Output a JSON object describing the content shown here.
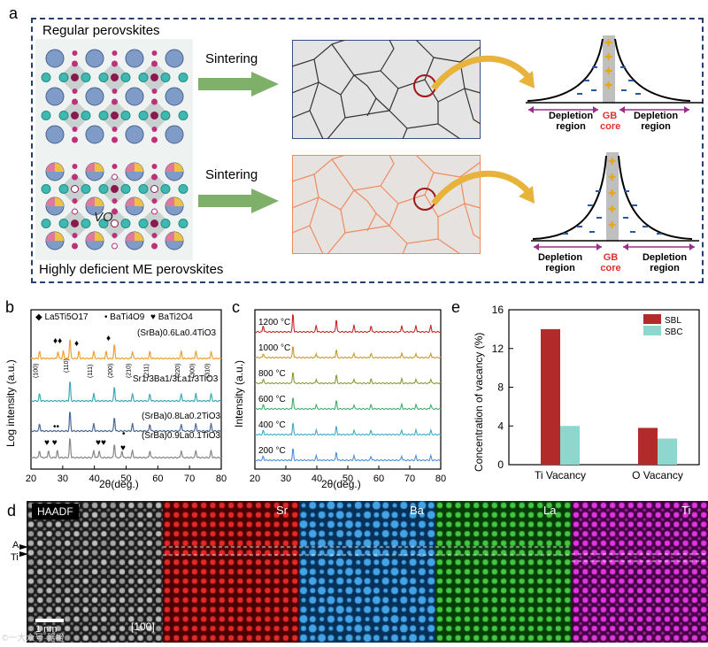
{
  "panel_a": {
    "label": "a",
    "regular_title": "Regular perovskites",
    "deficient_title": "Highly deficient ME perovskites",
    "vacancy_symbol": "VO",
    "sintering_top": "Sintering",
    "sintering_bottom": "Sintering",
    "depletion_left": "Depletion region",
    "gb_core": "GB core",
    "depletion_right": "Depletion region",
    "colors": {
      "regular_grain": "#333333",
      "deficient_grain": "#f08a5d",
      "arrow": "#7fb069",
      "highlight": "#e8b33a",
      "gb_text": "#e0322a",
      "depletion_arrow": "#9a2d8c"
    }
  },
  "panel_b": {
    "label": "b",
    "legend": [
      "◆ La5Ti5O17",
      "• BaTi4O9",
      "♥ BaTi2O4"
    ],
    "traces": [
      {
        "name": "(SrBa)0.6La0.4TiO3",
        "color": "#f0a030"
      },
      {
        "name": "Sr1/3Ba1/3La1/3TiO3",
        "color": "#3fa9b9"
      },
      {
        "name": "(SrBa)0.8La0.2TiO3",
        "color": "#4a6a9a"
      },
      {
        "name": "(SrBa)0.9La0.1TiO3",
        "color": "#888888"
      }
    ],
    "hkl": [
      "(100)",
      "(110)",
      "(111)",
      "(200)",
      "(210)",
      "(211)",
      "(220)",
      "(300)",
      "(310)"
    ],
    "xlabel": "2θ(deg.)",
    "ylabel": "Log intensity (a.u.)",
    "xticks": [
      "20",
      "30",
      "40",
      "50",
      "60",
      "70",
      "80"
    ]
  },
  "panel_c": {
    "label": "c",
    "temps": [
      "1200 °C",
      "1000 °C",
      "800 °C",
      "600 °C",
      "400 °C",
      "200 °C"
    ],
    "colors": [
      "#c62828",
      "#c79a2a",
      "#8a9a3a",
      "#3fae6a",
      "#3fa9c9",
      "#4a90d9"
    ],
    "xlabel": "2θ(deg.)",
    "ylabel": "Intensity (a.u.)",
    "xticks": [
      "20",
      "30",
      "40",
      "50",
      "60",
      "70",
      "80"
    ]
  },
  "panel_d": {
    "label": "d",
    "tiles": [
      {
        "name": "HAADF",
        "color": "#d0d0d0",
        "bg": "#1a1a1a"
      },
      {
        "name": "Sr",
        "color": "#ff3030",
        "bg": "#4a0000"
      },
      {
        "name": "Ba",
        "color": "#50b8ff",
        "bg": "#063058"
      },
      {
        "name": "La",
        "color": "#50e050",
        "bg": "#063c06"
      },
      {
        "name": "Ti",
        "color": "#ff40ff",
        "bg": "#400040"
      }
    ],
    "site_a": "A",
    "site_ti": "Ti",
    "scale_bar": "1 nm",
    "zone_axis": "[100]",
    "watermark": "©一大众号·器橙"
  },
  "chart_data": {
    "type": "bar",
    "title": "",
    "categories": [
      "Ti Vacancy",
      "O Vacancy"
    ],
    "series": [
      {
        "name": "SBL",
        "values": [
          14.0,
          3.8
        ],
        "color": "#b22a2a"
      },
      {
        "name": "SBC",
        "values": [
          4.0,
          2.7
        ],
        "color": "#8fd6cf"
      }
    ],
    "xlabel": "",
    "ylabel": "Concentration of vacancy (%)",
    "ylim": [
      0,
      16
    ],
    "yticks": [
      "0",
      "4",
      "8",
      "12",
      "16"
    ],
    "label": "e"
  }
}
